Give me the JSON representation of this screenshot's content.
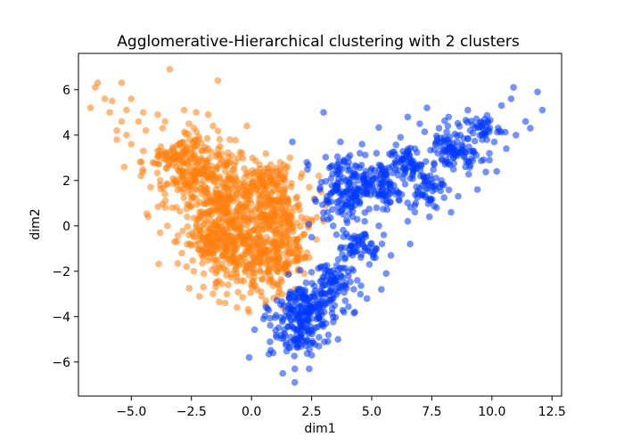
{
  "chart_data": {
    "type": "scatter",
    "title": "Agglomerative-Hierarchical clustering with 2 clusters",
    "xlabel": "dim1",
    "ylabel": "dim2",
    "xlim": [
      -7.2,
      12.9
    ],
    "ylim": [
      -7.5,
      7.6
    ],
    "xticks": [
      -5.0,
      -2.5,
      0.0,
      2.5,
      5.0,
      7.5,
      10.0,
      12.5
    ],
    "xtick_labels": [
      "−5.0",
      "−2.5",
      "0.0",
      "2.5",
      "5.0",
      "7.5",
      "10.0",
      "12.5"
    ],
    "yticks": [
      -6,
      -4,
      -2,
      0,
      2,
      4,
      6
    ],
    "ytick_labels": [
      "−6",
      "−4",
      "−2",
      "0",
      "2",
      "4",
      "6"
    ],
    "grid": false,
    "legend": "none",
    "marker_alpha": 0.55,
    "series": [
      {
        "color": "#ff7f0e",
        "points": [
          [
            -3.4,
            6.9
          ],
          [
            -1.4,
            6.4
          ],
          [
            -6.4,
            6.3
          ],
          [
            -6.5,
            6.1
          ],
          [
            -5.4,
            6.3
          ],
          [
            -6.1,
            5.6
          ],
          [
            -5.8,
            5.5
          ],
          [
            -5.0,
            5.6
          ],
          [
            -6.7,
            5.2
          ],
          [
            -5.9,
            5.0
          ],
          [
            -5.2,
            5.1
          ],
          [
            -4.5,
            5.0
          ],
          [
            -3.9,
            4.9
          ],
          [
            -2.8,
            5.1
          ],
          [
            -2.3,
            5.0
          ],
          [
            -1.8,
            4.9
          ],
          [
            -5.4,
            4.6
          ],
          [
            -4.7,
            4.6
          ],
          [
            -3.6,
            4.6
          ],
          [
            -5.6,
            4.2
          ],
          [
            -5.2,
            4.0
          ],
          [
            -4.4,
            4.2
          ],
          [
            -3.7,
            4.3
          ],
          [
            -2.6,
            4.5
          ],
          [
            -1.6,
            4.4
          ],
          [
            -5.6,
            3.8
          ],
          [
            -5.0,
            3.6
          ],
          [
            -4.5,
            3.3
          ],
          [
            -3.0,
            3.6
          ],
          [
            -0.9,
            3.8
          ],
          [
            -0.4,
            3.2
          ],
          [
            -4.1,
            2.8
          ],
          [
            -5.3,
            2.6
          ],
          [
            -4.6,
            2.2
          ],
          [
            -4.2,
            1.7
          ],
          [
            -3.8,
            2.0
          ],
          [
            -3.6,
            1.4
          ],
          [
            -3.3,
            0.8
          ],
          [
            -4.3,
            0.4
          ],
          [
            -3.5,
            0.0
          ],
          [
            -3.8,
            -0.3
          ],
          [
            -3.2,
            -0.7
          ],
          [
            -2.9,
            -1.2
          ],
          [
            -2.7,
            -1.8
          ],
          [
            -2.4,
            -2.0
          ],
          [
            -2.0,
            -2.7
          ],
          [
            -1.6,
            -3.0
          ],
          [
            -1.1,
            -3.4
          ],
          [
            -0.6,
            -3.6
          ],
          [
            -0.1,
            -3.8
          ],
          [
            0.6,
            -3.3
          ],
          [
            0.8,
            2.7
          ],
          [
            1.2,
            2.8
          ],
          [
            1.6,
            3.0
          ],
          [
            1.5,
            2.6
          ],
          [
            2.1,
            2.3
          ],
          [
            2.4,
            1.7
          ],
          [
            2.6,
            1.2
          ],
          [
            2.0,
            0.7
          ],
          [
            2.2,
            0.2
          ],
          [
            1.9,
            -0.6
          ],
          [
            1.7,
            -1.2
          ],
          [
            1.4,
            -1.8
          ],
          [
            1.1,
            -2.6
          ],
          [
            2.8,
            2.2
          ],
          [
            2.9,
            1.5
          ],
          [
            3.1,
            0.9
          ],
          [
            3.0,
            0.2
          ],
          [
            2.7,
            -0.6
          ],
          [
            2.4,
            -1.4
          ],
          [
            2.2,
            -2.1
          ],
          [
            1.8,
            -2.8
          ],
          [
            0.4,
            -2.9
          ],
          [
            1.3,
            -3.6
          ],
          [
            -2.6,
            -0.4
          ],
          [
            -2.0,
            -1.1
          ],
          [
            -1.8,
            3.4
          ],
          [
            -2.2,
            3.8
          ]
        ],
        "blobs": [
          {
            "cx": -1.2,
            "cy": 0.9,
            "rx": 1.9,
            "ry": 1.1,
            "rot": 55
          },
          {
            "cx": -0.2,
            "cy": -0.6,
            "rx": 2.0,
            "ry": 1.3,
            "rot": 55
          },
          {
            "cx": -2.2,
            "cy": 2.2,
            "rx": 1.7,
            "ry": 0.9,
            "rot": 40
          },
          {
            "cx": 0.9,
            "cy": -1.6,
            "rx": 1.3,
            "ry": 1.0,
            "rot": 60
          },
          {
            "cx": -3.0,
            "cy": 3.2,
            "rx": 1.4,
            "ry": 0.6,
            "rot": 30
          },
          {
            "cx": 1.2,
            "cy": 0.7,
            "rx": 0.9,
            "ry": 1.6,
            "rot": 20
          },
          {
            "cx": -1.6,
            "cy": -0.9,
            "rx": 0.8,
            "ry": 0.9,
            "rot": 30
          },
          {
            "cx": 0.6,
            "cy": 2.0,
            "rx": 0.7,
            "ry": 0.7,
            "rot": 0
          }
        ]
      },
      {
        "color": "#0039ff",
        "points": [
          [
            10.9,
            6.1
          ],
          [
            11.9,
            5.9
          ],
          [
            12.1,
            5.1
          ],
          [
            7.3,
            5.2
          ],
          [
            9.0,
            5.1
          ],
          [
            10.4,
            5.3
          ],
          [
            10.8,
            5.6
          ],
          [
            6.5,
            4.8
          ],
          [
            8.2,
            4.8
          ],
          [
            9.7,
            4.7
          ],
          [
            11.4,
            4.6
          ],
          [
            11.6,
            4.3
          ],
          [
            11.0,
            4.0
          ],
          [
            3.7,
            3.7
          ],
          [
            4.6,
            3.6
          ],
          [
            6.2,
            3.9
          ],
          [
            7.8,
            4.3
          ],
          [
            9.1,
            4.2
          ],
          [
            10.1,
            3.7
          ],
          [
            10.6,
            3.4
          ],
          [
            4.1,
            3.1
          ],
          [
            5.2,
            3.2
          ],
          [
            6.8,
            3.4
          ],
          [
            8.5,
            3.5
          ],
          [
            9.9,
            2.9
          ],
          [
            10.2,
            2.4
          ],
          [
            8.9,
            2.6
          ],
          [
            7.6,
            2.7
          ],
          [
            3.3,
            2.6
          ],
          [
            4.6,
            2.2
          ],
          [
            5.6,
            2.4
          ],
          [
            6.6,
            2.1
          ],
          [
            7.9,
            2.0
          ],
          [
            9.4,
            1.6
          ],
          [
            8.6,
            1.3
          ],
          [
            7.7,
            0.8
          ],
          [
            6.8,
            0.9
          ],
          [
            3.6,
            1.7
          ],
          [
            4.8,
            1.4
          ],
          [
            6.0,
            1.4
          ],
          [
            5.2,
            0.8
          ],
          [
            4.2,
            0.4
          ],
          [
            6.5,
            0.2
          ],
          [
            7.4,
            0.4
          ],
          [
            8.3,
            0.6
          ],
          [
            5.5,
            -0.4
          ],
          [
            4.6,
            -0.6
          ],
          [
            3.4,
            0.0
          ],
          [
            6.6,
            -0.8
          ],
          [
            5.8,
            -1.3
          ],
          [
            4.9,
            -1.7
          ],
          [
            3.9,
            -1.4
          ],
          [
            2.9,
            -1.8
          ],
          [
            5.6,
            -2.1
          ],
          [
            4.4,
            -2.4
          ],
          [
            5.4,
            -2.8
          ],
          [
            4.8,
            -3.2
          ],
          [
            3.9,
            -3.3
          ],
          [
            4.3,
            -3.8
          ],
          [
            3.1,
            -4.3
          ],
          [
            3.6,
            -5.0
          ],
          [
            2.8,
            -5.3
          ],
          [
            1.8,
            -5.0
          ],
          [
            1.0,
            -4.6
          ],
          [
            0.5,
            -4.1
          ],
          [
            1.6,
            -3.6
          ],
          [
            2.6,
            -3.1
          ],
          [
            0.9,
            -5.6
          ],
          [
            -0.1,
            -5.8
          ],
          [
            1.3,
            -6.5
          ],
          [
            1.8,
            -6.3
          ],
          [
            1.8,
            -6.9
          ],
          [
            2.4,
            -6.3
          ],
          [
            2.5,
            -5.7
          ],
          [
            3.2,
            -4.8
          ],
          [
            3.0,
            5.0
          ],
          [
            1.7,
            3.7
          ],
          [
            2.3,
            2.8
          ],
          [
            8.4,
            3.0
          ],
          [
            9.6,
            3.8
          ],
          [
            7.0,
            4.5
          ],
          [
            8.0,
            1.8
          ],
          [
            3.7,
            -1.0
          ],
          [
            2.5,
            -0.5
          ]
        ],
        "blobs": [
          {
            "cx": 2.3,
            "cy": -3.6,
            "rx": 1.2,
            "ry": 1.1,
            "rot": 0
          },
          {
            "cx": 1.9,
            "cy": -4.6,
            "rx": 1.0,
            "ry": 0.9,
            "rot": 20
          },
          {
            "cx": 3.3,
            "cy": -2.5,
            "rx": 0.8,
            "ry": 0.9,
            "rot": 0
          },
          {
            "cx": 3.8,
            "cy": 1.5,
            "rx": 0.9,
            "ry": 1.4,
            "rot": 10
          },
          {
            "cx": 5.3,
            "cy": 1.8,
            "rx": 1.1,
            "ry": 0.8,
            "rot": -30
          },
          {
            "cx": 6.5,
            "cy": 2.7,
            "rx": 1.0,
            "ry": 0.7,
            "rot": -30
          },
          {
            "cx": 8.4,
            "cy": 3.4,
            "rx": 1.1,
            "ry": 0.8,
            "rot": -25
          },
          {
            "cx": 7.2,
            "cy": 1.6,
            "rx": 0.7,
            "ry": 0.6,
            "rot": 0
          },
          {
            "cx": 4.6,
            "cy": -0.9,
            "rx": 0.8,
            "ry": 0.6,
            "rot": 0
          },
          {
            "cx": 9.6,
            "cy": 4.3,
            "rx": 0.7,
            "ry": 0.5,
            "rot": 0
          }
        ]
      }
    ]
  }
}
